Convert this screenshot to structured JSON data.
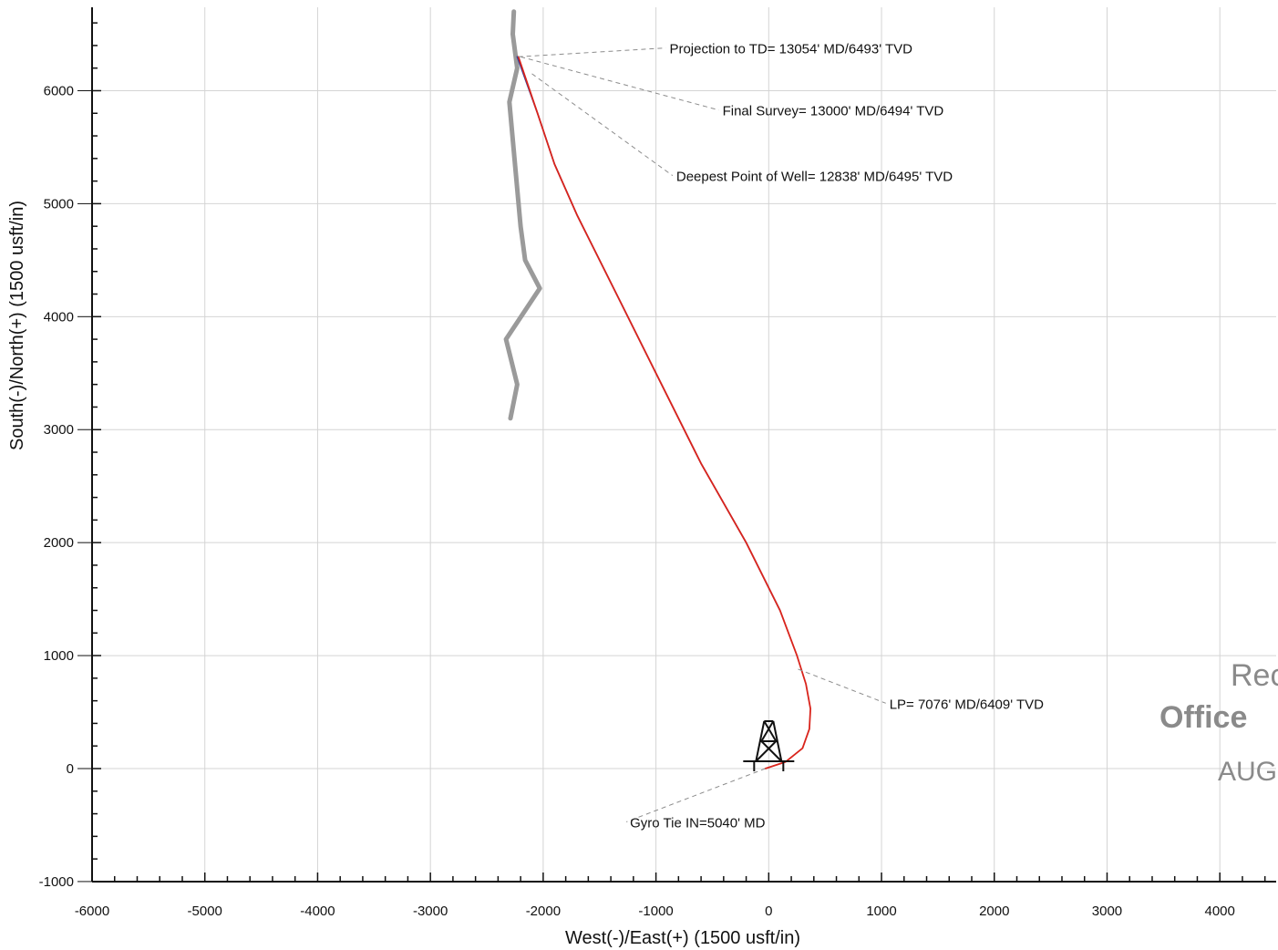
{
  "chart_data": {
    "type": "line",
    "title": "",
    "xlabel": "West(-)/East(+) (1500 usft/in)",
    "ylabel": "South(-)/North(+) (1500 usft/in)",
    "xlim": [
      -6000,
      4500
    ],
    "ylim": [
      -1000,
      6700
    ],
    "grid": true,
    "x_ticks": [
      -6000,
      -5000,
      -4000,
      -3000,
      -2000,
      -1000,
      0,
      1000,
      2000,
      3000,
      4000
    ],
    "y_ticks": [
      -1000,
      0,
      1000,
      2000,
      3000,
      4000,
      5000,
      6000
    ],
    "series": [
      {
        "color": "#d9241c",
        "x": [
          -30,
          150,
          300,
          360,
          370,
          330,
          250,
          100,
          -200,
          -600,
          -1000,
          -1300,
          -1700,
          -1900,
          -2050,
          -2220
        ],
        "y": [
          0,
          60,
          180,
          350,
          530,
          750,
          1000,
          1400,
          2000,
          2700,
          3500,
          4100,
          4900,
          5350,
          5800,
          6300
        ]
      },
      {
        "color": "#2e3f9e",
        "x": [
          100,
          -200,
          -600,
          -1000,
          -1300,
          -1700,
          -1900,
          -2050,
          -2230
        ],
        "y": [
          1400,
          2000,
          2700,
          3500,
          4100,
          4900,
          5350,
          5800,
          6300
        ]
      },
      {
        "color": "#9a9a9a",
        "x": [
          -2290,
          -2230,
          -2330,
          -2030,
          -2160,
          -2200,
          -2300,
          -2230,
          -2270,
          -2260
        ],
        "y": [
          3100,
          3400,
          3800,
          4250,
          4500,
          4800,
          5900,
          6200,
          6500,
          6700
        ]
      }
    ],
    "annotations": [
      {
        "text": "Projection to TD= 13054' MD/6493' TVD",
        "x": -2220,
        "y": 6300,
        "label_x": -880,
        "label_y": 6330
      },
      {
        "text": "Final Survey= 13000' MD/6494' TVD",
        "x": -2200,
        "y": 6300,
        "label_x": -410,
        "label_y": 5780
      },
      {
        "text": "Deepest Point of Well= 12838' MD/6495' TVD",
        "x": -2100,
        "y": 6150,
        "label_x": -820,
        "label_y": 5200
      },
      {
        "text": "LP= 7076' MD/6409' TVD",
        "x": 260,
        "y": 880,
        "label_x": 1070,
        "label_y": 530
      },
      {
        "text": "Gyro Tie IN=5040' MD",
        "x": -30,
        "y": 0,
        "label_x": -1230,
        "label_y": -520
      }
    ],
    "rig_marker": {
      "x": 0,
      "y": 0
    }
  },
  "stamp": {
    "line1": "Rec",
    "line2": "Office",
    "line3": "AUG"
  }
}
